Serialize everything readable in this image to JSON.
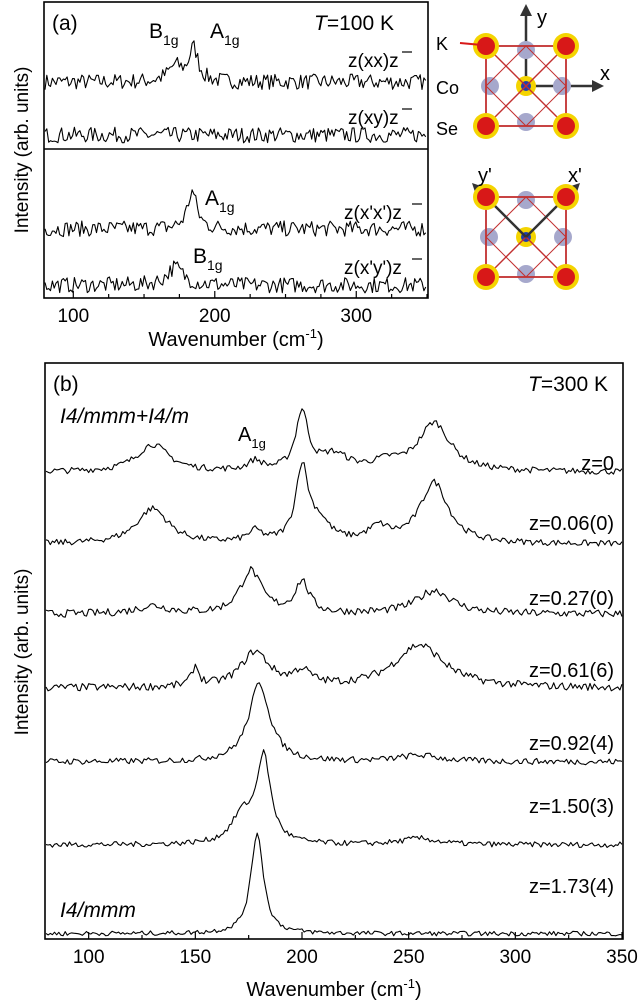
{
  "chart_data": [
    {
      "type": "line",
      "panel_label": "(a)",
      "temperature_label": "T=100 K",
      "xlabel": "Wavenumber (cm",
      "xlabel_sup": "-1",
      "xlabel_close": ")",
      "ylabel": "Intensity (arb. units)",
      "xlim": [
        80,
        350
      ],
      "xticks": [
        100,
        200,
        300
      ],
      "xtick_labels": [
        "100",
        "200",
        "300"
      ],
      "mode_labels": [
        {
          "text": "B",
          "sub": "1g"
        },
        {
          "text": "A",
          "sub": "1g"
        },
        {
          "text": "A",
          "sub": "1g"
        },
        {
          "text": "B",
          "sub": "1g"
        }
      ],
      "series": [
        {
          "name": "z(xx)z",
          "peaks": [
            {
              "x": 185,
              "height": 0.55,
              "width": 4
            },
            {
              "x": 172,
              "height": 0.25,
              "width": 6
            }
          ],
          "baseline": 0.1,
          "noise": 0.13
        },
        {
          "name": "z(xy)z",
          "peaks": [],
          "baseline": 0.05,
          "noise": 0.13
        },
        {
          "name": "z(x'x')z",
          "peaks": [
            {
              "x": 184,
              "height": 0.62,
              "width": 4
            }
          ],
          "baseline": 0.12,
          "noise": 0.13
        },
        {
          "name": "z(x'y')z",
          "peaks": [
            {
              "x": 172,
              "height": 0.3,
              "width": 7
            }
          ],
          "baseline": 0.08,
          "noise": 0.13
        }
      ]
    },
    {
      "type": "line",
      "panel_label": "(b)",
      "temperature_label": "T=300 K",
      "xlabel": "Wavenumber (cm",
      "xlabel_sup": "-1",
      "xlabel_close": ")",
      "ylabel": "Intensity (arb. units)",
      "xlim": [
        80,
        350
      ],
      "xticks": [
        100,
        150,
        200,
        250,
        300,
        350
      ],
      "xtick_labels": [
        "100",
        "150",
        "200",
        "250",
        "300",
        "350"
      ],
      "annotations": [
        "I4/mmm+I4/m",
        "I4/mmm"
      ],
      "mode_label": {
        "text": "A",
        "sub": "1g"
      },
      "series": [
        {
          "name": "z=0",
          "peaks": [
            {
              "x": 130,
              "height": 0.35,
              "width": 9
            },
            {
              "x": 178,
              "height": 0.12,
              "width": 4
            },
            {
              "x": 200,
              "height": 0.75,
              "width": 3.5
            },
            {
              "x": 215,
              "height": 0.2,
              "width": 8
            },
            {
              "x": 262,
              "height": 0.62,
              "width": 9
            },
            {
              "x": 240,
              "height": 0.1,
              "width": 8
            }
          ],
          "baseline": 0.05,
          "noise": 0.04
        },
        {
          "name": "z=0.06(0)",
          "peaks": [
            {
              "x": 130,
              "height": 0.45,
              "width": 9
            },
            {
              "x": 178,
              "height": 0.14,
              "width": 4
            },
            {
              "x": 200,
              "height": 0.95,
              "width": 3.5
            },
            {
              "x": 208,
              "height": 0.25,
              "width": 6
            },
            {
              "x": 236,
              "height": 0.18,
              "width": 6
            },
            {
              "x": 262,
              "height": 0.78,
              "width": 8
            }
          ],
          "baseline": 0.05,
          "noise": 0.04
        },
        {
          "name": "z=0.27(0)",
          "peaks": [
            {
              "x": 130,
              "height": 0.1,
              "width": 9
            },
            {
              "x": 176,
              "height": 0.55,
              "width": 6
            },
            {
              "x": 200,
              "height": 0.4,
              "width": 4
            },
            {
              "x": 262,
              "height": 0.3,
              "width": 10
            }
          ],
          "baseline": 0.05,
          "noise": 0.05
        },
        {
          "name": "z=0.61(6)",
          "peaks": [
            {
              "x": 150,
              "height": 0.25,
              "width": 2
            },
            {
              "x": 178,
              "height": 0.45,
              "width": 8
            },
            {
              "x": 200,
              "height": 0.18,
              "width": 5
            },
            {
              "x": 255,
              "height": 0.55,
              "width": 14
            }
          ],
          "baseline": 0.05,
          "noise": 0.05
        },
        {
          "name": "z=0.92(4)",
          "peaks": [
            {
              "x": 180,
              "height": 1.0,
              "width": 6
            },
            {
              "x": 255,
              "height": 0.08,
              "width": 12
            }
          ],
          "baseline": 0.04,
          "noise": 0.04
        },
        {
          "name": "z=1.50(3)",
          "peaks": [
            {
              "x": 182,
              "height": 1.1,
              "width": 4
            },
            {
              "x": 172,
              "height": 0.35,
              "width": 6
            },
            {
              "x": 255,
              "height": 0.08,
              "width": 10
            }
          ],
          "baseline": 0.04,
          "noise": 0.035
        },
        {
          "name": "z=1.73(4)",
          "peaks": [
            {
              "x": 179,
              "height": 1.3,
              "width": 3.5
            }
          ],
          "baseline": 0.03,
          "noise": 0.03
        }
      ]
    }
  ],
  "inset": {
    "axis_y": "y",
    "axis_x": "x",
    "axis_yp": "y'",
    "axis_xp": "x'",
    "atoms": [
      "K",
      "Co",
      "Se"
    ],
    "colors": {
      "potassium": "#d81818",
      "halo": "#f4d400",
      "cobalt": "#1d3db0",
      "selenium": "#a6a8cc",
      "bond": "#c23030"
    }
  }
}
